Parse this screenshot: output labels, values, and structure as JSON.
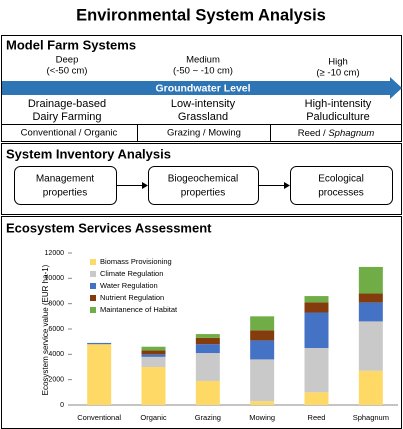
{
  "title": "Environmental System Analysis",
  "model_farm": {
    "heading": "Model Farm Systems",
    "levels": [
      {
        "name": "Deep",
        "range": "(<-50 cm)"
      },
      {
        "name": "Medium",
        "range": "(-50 ~ -10 cm)"
      },
      {
        "name": "High",
        "range": "(≥ -10 cm)"
      }
    ],
    "arrow_label": "Groundwater Level",
    "systems": [
      {
        "line1": "Drainage-based",
        "line2": "Dairy Farming"
      },
      {
        "line1": "Low-intensity",
        "line2": "Grassland"
      },
      {
        "line1": "High-intensity",
        "line2": "Paludiculture"
      }
    ],
    "variants": [
      {
        "text": "Conventional / Organic"
      },
      {
        "text": "Grazing / Mowing"
      },
      {
        "text": "Reed / ",
        "italic": "Sphagnum"
      }
    ]
  },
  "inventory": {
    "heading": "System Inventory Analysis",
    "steps": [
      {
        "line1": "Management",
        "line2": "properties"
      },
      {
        "line1": "Biogeochemical",
        "line2": "properties"
      },
      {
        "line1": "Ecological",
        "line2": "processes"
      }
    ]
  },
  "assessment": {
    "heading": "Ecosystem Services Assessment"
  },
  "chart_data": {
    "type": "stacked_bar",
    "y_label": "Ecosystem service value (EUR ha-1)",
    "categories": [
      "Conventional",
      "Organic",
      "Grazing",
      "Mowing",
      "Reed",
      "Sphagnum"
    ],
    "series": [
      {
        "name": "Biomass Provisioning",
        "color": "#ffd966",
        "values": [
          4800,
          3000,
          1900,
          300,
          1000,
          2700
        ]
      },
      {
        "name": "Climate Regulation",
        "color": "#c9c9c9",
        "values": [
          0,
          800,
          2200,
          3300,
          3500,
          3900
        ]
      },
      {
        "name": "Water Regulation",
        "color": "#4472c4",
        "values": [
          100,
          200,
          700,
          1500,
          2800,
          1500
        ]
      },
      {
        "name": "Nutrient Regulation",
        "color": "#843c0c",
        "values": [
          0,
          300,
          500,
          800,
          800,
          700
        ]
      },
      {
        "name": "Maintanence of Habitat",
        "color": "#70ad47",
        "values": [
          0,
          300,
          300,
          1100,
          500,
          2100
        ]
      }
    ],
    "ylim": [
      0,
      12000
    ],
    "yticks": [
      0,
      2000,
      4000,
      6000,
      8000,
      10000,
      12000
    ],
    "grid": false,
    "legend": "upper left"
  }
}
